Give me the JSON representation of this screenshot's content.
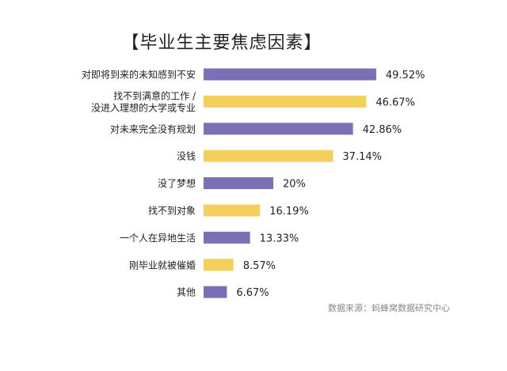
{
  "chart_data": {
    "type": "bar",
    "orientation": "horizontal",
    "title": "【毕业生主要焦虑因素】",
    "categories": [
      [
        "对即将到来的未知感到不安"
      ],
      [
        "找不到满意的工作 /",
        "没进入理想的大学或专业"
      ],
      [
        "对未来完全没有规划"
      ],
      [
        "没钱"
      ],
      [
        "没了梦想"
      ],
      [
        "找不到对象"
      ],
      [
        "一个人在异地生活"
      ],
      [
        "刚毕业就被催婚"
      ],
      [
        "其他"
      ]
    ],
    "values": [
      49.52,
      46.67,
      42.86,
      37.14,
      20,
      16.19,
      13.33,
      8.57,
      6.67
    ],
    "value_labels": [
      "49.52%",
      "46.67%",
      "42.86%",
      "37.14%",
      "20%",
      "16.19%",
      "13.33%",
      "8.57%",
      "6.67%"
    ],
    "bar_colors": [
      "#7b6fb5",
      "#f5cf5c",
      "#7b6fb5",
      "#f5cf5c",
      "#7b6fb5",
      "#f5cf5c",
      "#7b6fb5",
      "#f5cf5c",
      "#7b6fb5"
    ],
    "unit": "%",
    "source": "数据来源：蚂蜂窝数据研究中心"
  }
}
